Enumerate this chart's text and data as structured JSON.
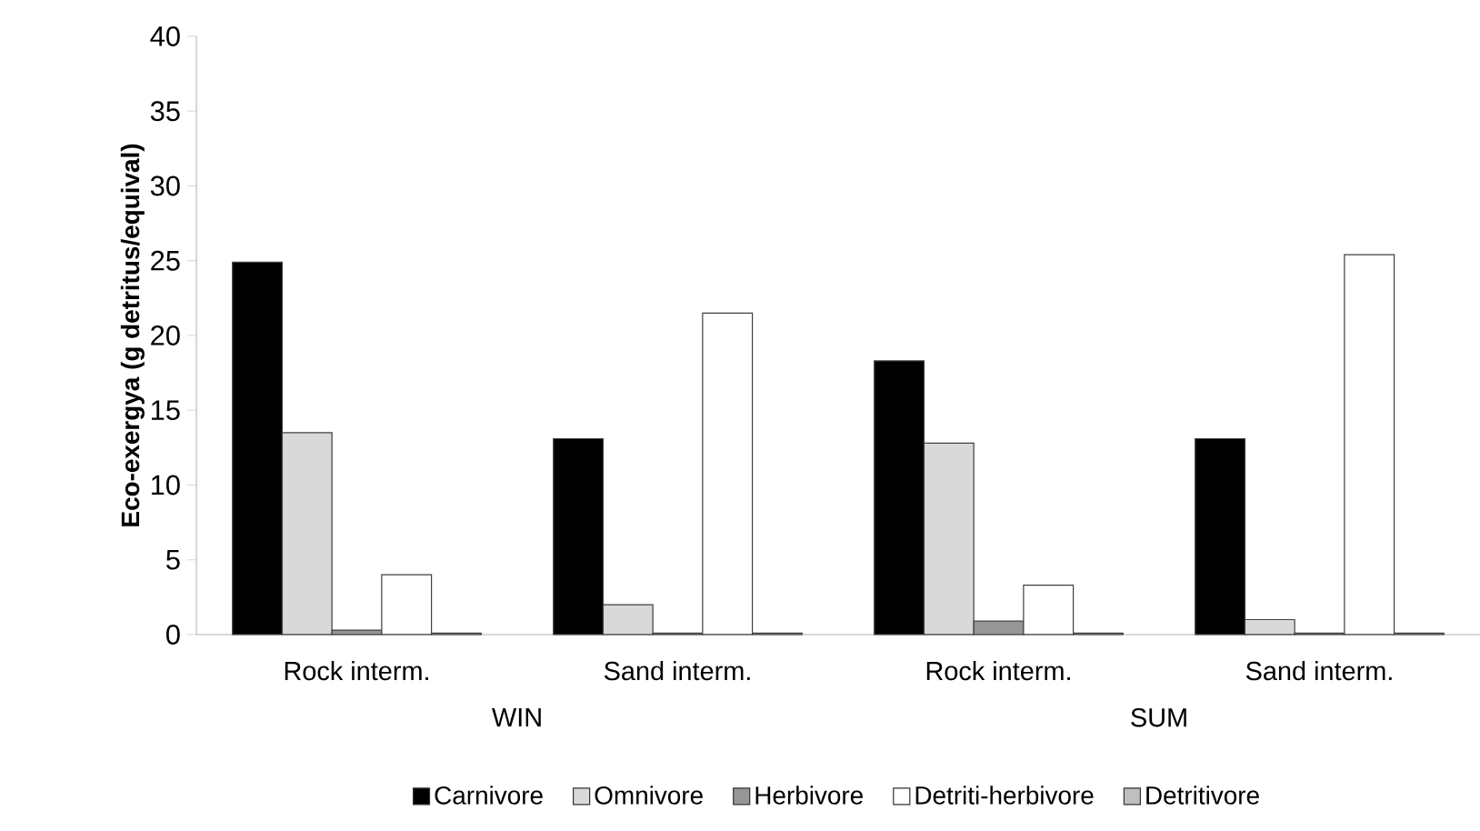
{
  "chart_data": {
    "type": "bar",
    "ylabel": "Eco-exergya (g detritus/equival)",
    "categories": [
      "Rock interm.",
      "Sand interm.",
      "Rock interm.",
      "Sand interm."
    ],
    "annotations": [
      "WIN",
      "SUM"
    ],
    "series": [
      {
        "name": "Carnivore",
        "color": "#000000",
        "values": [
          24.9,
          13.1,
          18.3,
          13.1
        ]
      },
      {
        "name": "Omnivore",
        "color": "#d9d9d9",
        "values": [
          13.5,
          2.0,
          12.8,
          1.0
        ]
      },
      {
        "name": "Herbivore",
        "color": "#969696",
        "values": [
          0.3,
          0.1,
          0.9,
          0.1
        ]
      },
      {
        "name": "Detriti-herbivore",
        "color": "#ffffff",
        "values": [
          4.0,
          21.5,
          3.3,
          25.4
        ]
      },
      {
        "name": "Detritivore",
        "color": "#bfbfbf",
        "values": [
          0.1,
          0.1,
          0.1,
          0.1
        ]
      }
    ],
    "ylim": [
      0,
      40
    ],
    "yticks": [
      0,
      5,
      10,
      15,
      20,
      25,
      30,
      35,
      40
    ],
    "grid": false,
    "legend": "bottom"
  }
}
